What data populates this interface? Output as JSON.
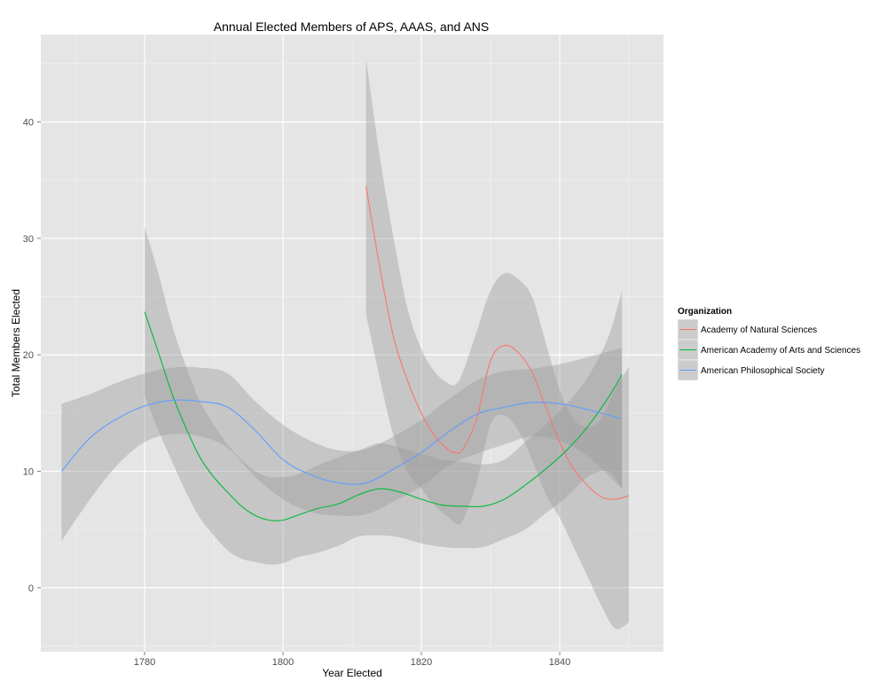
{
  "chart_data": {
    "type": "line",
    "title": "Annual Elected Members of APS, AAAS, and ANS",
    "xlabel": "Year Elected",
    "ylabel": "Total Members Elected",
    "xlim": [
      1765,
      1855
    ],
    "ylim": [
      -5.5,
      47.5
    ],
    "x_ticks": [
      1780,
      1800,
      1820,
      1840
    ],
    "y_ticks": [
      0,
      10,
      20,
      30,
      40
    ],
    "grid": true,
    "legend": {
      "title": "Organization",
      "position": "right"
    },
    "series": [
      {
        "name": "Academy of Natural Sciences",
        "color": "#F8766D",
        "x": [
          1812,
          1814,
          1816,
          1818,
          1820,
          1822,
          1824,
          1825,
          1826,
          1828,
          1830,
          1832,
          1834,
          1836,
          1838,
          1840,
          1842,
          1844,
          1846,
          1848,
          1850
        ],
        "y": [
          34.5,
          27.5,
          21.5,
          17.8,
          15.0,
          13.0,
          11.8,
          11.6,
          11.9,
          14.5,
          19.5,
          20.8,
          20.2,
          18.5,
          15.5,
          12.5,
          10.2,
          8.8,
          7.8,
          7.6,
          7.9
        ],
        "lower": [
          23.5,
          18.0,
          13.0,
          10.0,
          8.5,
          7.0,
          6.0,
          5.5,
          5.8,
          9.0,
          14.0,
          14.8,
          13.5,
          11.0,
          8.0,
          6.0,
          3.5,
          1.0,
          -1.5,
          -3.5,
          -3.0
        ],
        "upper": [
          45.5,
          37.0,
          30.0,
          24.0,
          20.5,
          18.5,
          17.5,
          17.5,
          18.5,
          22.0,
          25.5,
          27.0,
          26.5,
          25.0,
          21.0,
          17.0,
          14.5,
          13.8,
          14.5,
          17.0,
          19.0
        ]
      },
      {
        "name": "American Academy of Arts and Sciences",
        "color": "#00BA38",
        "x": [
          1780,
          1782,
          1784,
          1786,
          1788,
          1790,
          1792,
          1794,
          1796,
          1798,
          1800,
          1802,
          1805,
          1808,
          1811,
          1814,
          1817,
          1820,
          1823,
          1826,
          1829,
          1832,
          1835,
          1838,
          1841,
          1844,
          1847,
          1849
        ],
        "y": [
          23.7,
          20.2,
          16.6,
          13.7,
          11.2,
          9.5,
          8.2,
          7.0,
          6.2,
          5.8,
          5.8,
          6.2,
          6.8,
          7.2,
          8.0,
          8.5,
          8.2,
          7.6,
          7.1,
          7.0,
          7.0,
          7.6,
          8.8,
          10.2,
          11.8,
          13.8,
          16.3,
          18.3
        ],
        "lower": [
          16.5,
          13.5,
          10.8,
          8.2,
          6.0,
          4.5,
          3.2,
          2.5,
          2.2,
          2.0,
          2.1,
          2.6,
          3.0,
          3.6,
          4.4,
          4.5,
          4.3,
          3.8,
          3.5,
          3.4,
          3.5,
          4.2,
          5.0,
          6.4,
          7.8,
          9.5,
          10.0,
          8.5
        ],
        "upper": [
          31.0,
          27.0,
          22.5,
          19.0,
          16.0,
          14.0,
          12.3,
          11.0,
          10.0,
          9.5,
          9.5,
          9.7,
          10.5,
          11.2,
          11.8,
          12.4,
          12.0,
          11.5,
          11.0,
          10.8,
          10.6,
          11.0,
          12.5,
          14.0,
          15.8,
          18.0,
          21.5,
          25.5
        ]
      },
      {
        "name": "American Philosophical Society",
        "color": "#619CFF",
        "x": [
          1768,
          1772,
          1776,
          1780,
          1784,
          1788,
          1792,
          1796,
          1800,
          1804,
          1808,
          1812,
          1816,
          1820,
          1824,
          1828,
          1832,
          1836,
          1840,
          1844,
          1849
        ],
        "y": [
          10.0,
          12.8,
          14.5,
          15.6,
          16.1,
          16.0,
          15.5,
          13.5,
          11.0,
          9.7,
          9.0,
          9.0,
          10.2,
          11.6,
          13.4,
          14.9,
          15.5,
          15.9,
          15.8,
          15.3,
          14.5
        ],
        "lower": [
          4.0,
          7.5,
          10.5,
          12.5,
          13.2,
          13.0,
          12.0,
          9.5,
          7.6,
          6.5,
          6.2,
          6.3,
          7.4,
          8.7,
          10.5,
          11.5,
          12.3,
          13.0,
          12.6,
          11.3,
          8.5
        ],
        "upper": [
          15.8,
          16.6,
          17.6,
          18.4,
          18.9,
          18.9,
          18.4,
          16.0,
          14.0,
          12.6,
          11.8,
          11.9,
          13.0,
          14.4,
          16.2,
          17.8,
          18.6,
          18.8,
          19.2,
          19.8,
          20.6
        ]
      }
    ]
  }
}
